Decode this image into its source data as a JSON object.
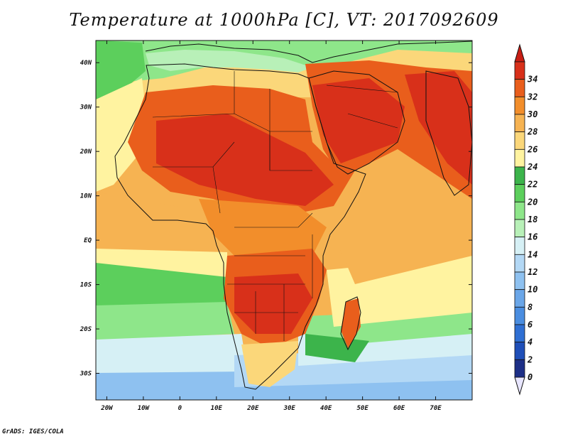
{
  "title": "Temperature at 1000hPa [C], VT: 2017092609",
  "credit": "GrADS: IGES/COLA",
  "map": {
    "lon_range": [
      -23,
      80
    ],
    "lat_range": [
      -36,
      45
    ],
    "lon_ticks": [
      {
        "value": -20,
        "label": "20W"
      },
      {
        "value": -10,
        "label": "10W"
      },
      {
        "value": 0,
        "label": "0"
      },
      {
        "value": 10,
        "label": "10E"
      },
      {
        "value": 20,
        "label": "20E"
      },
      {
        "value": 30,
        "label": "30E"
      },
      {
        "value": 40,
        "label": "40E"
      },
      {
        "value": 50,
        "label": "50E"
      },
      {
        "value": 60,
        "label": "60E"
      },
      {
        "value": 70,
        "label": "70E"
      }
    ],
    "lat_ticks": [
      {
        "value": 40,
        "label": "40N"
      },
      {
        "value": 30,
        "label": "30N"
      },
      {
        "value": 20,
        "label": "20N"
      },
      {
        "value": 10,
        "label": "10N"
      },
      {
        "value": 0,
        "label": "EQ"
      },
      {
        "value": -10,
        "label": "10S"
      },
      {
        "value": -20,
        "label": "20S"
      },
      {
        "value": -30,
        "label": "30S"
      }
    ]
  },
  "colorbar": {
    "levels": [
      "0",
      "2",
      "4",
      "6",
      "8",
      "10",
      "12",
      "14",
      "16",
      "18",
      "20",
      "22",
      "24",
      "26",
      "28",
      "30",
      "32",
      "34"
    ],
    "colors": [
      "#1d2f87",
      "#1f4fb8",
      "#2f6fd3",
      "#4a8de0",
      "#6aa6e8",
      "#8ec1f0",
      "#b3d8f5",
      "#d6f0f5",
      "#b8f0b8",
      "#8ee68a",
      "#5ccf5c",
      "#3cb44b",
      "#fff3a0",
      "#fbd77a",
      "#f6b352",
      "#f28e2b",
      "#e95e1c",
      "#d8301a"
    ],
    "under_color": "#e8e6ff",
    "over_color": "#c81e14"
  }
}
